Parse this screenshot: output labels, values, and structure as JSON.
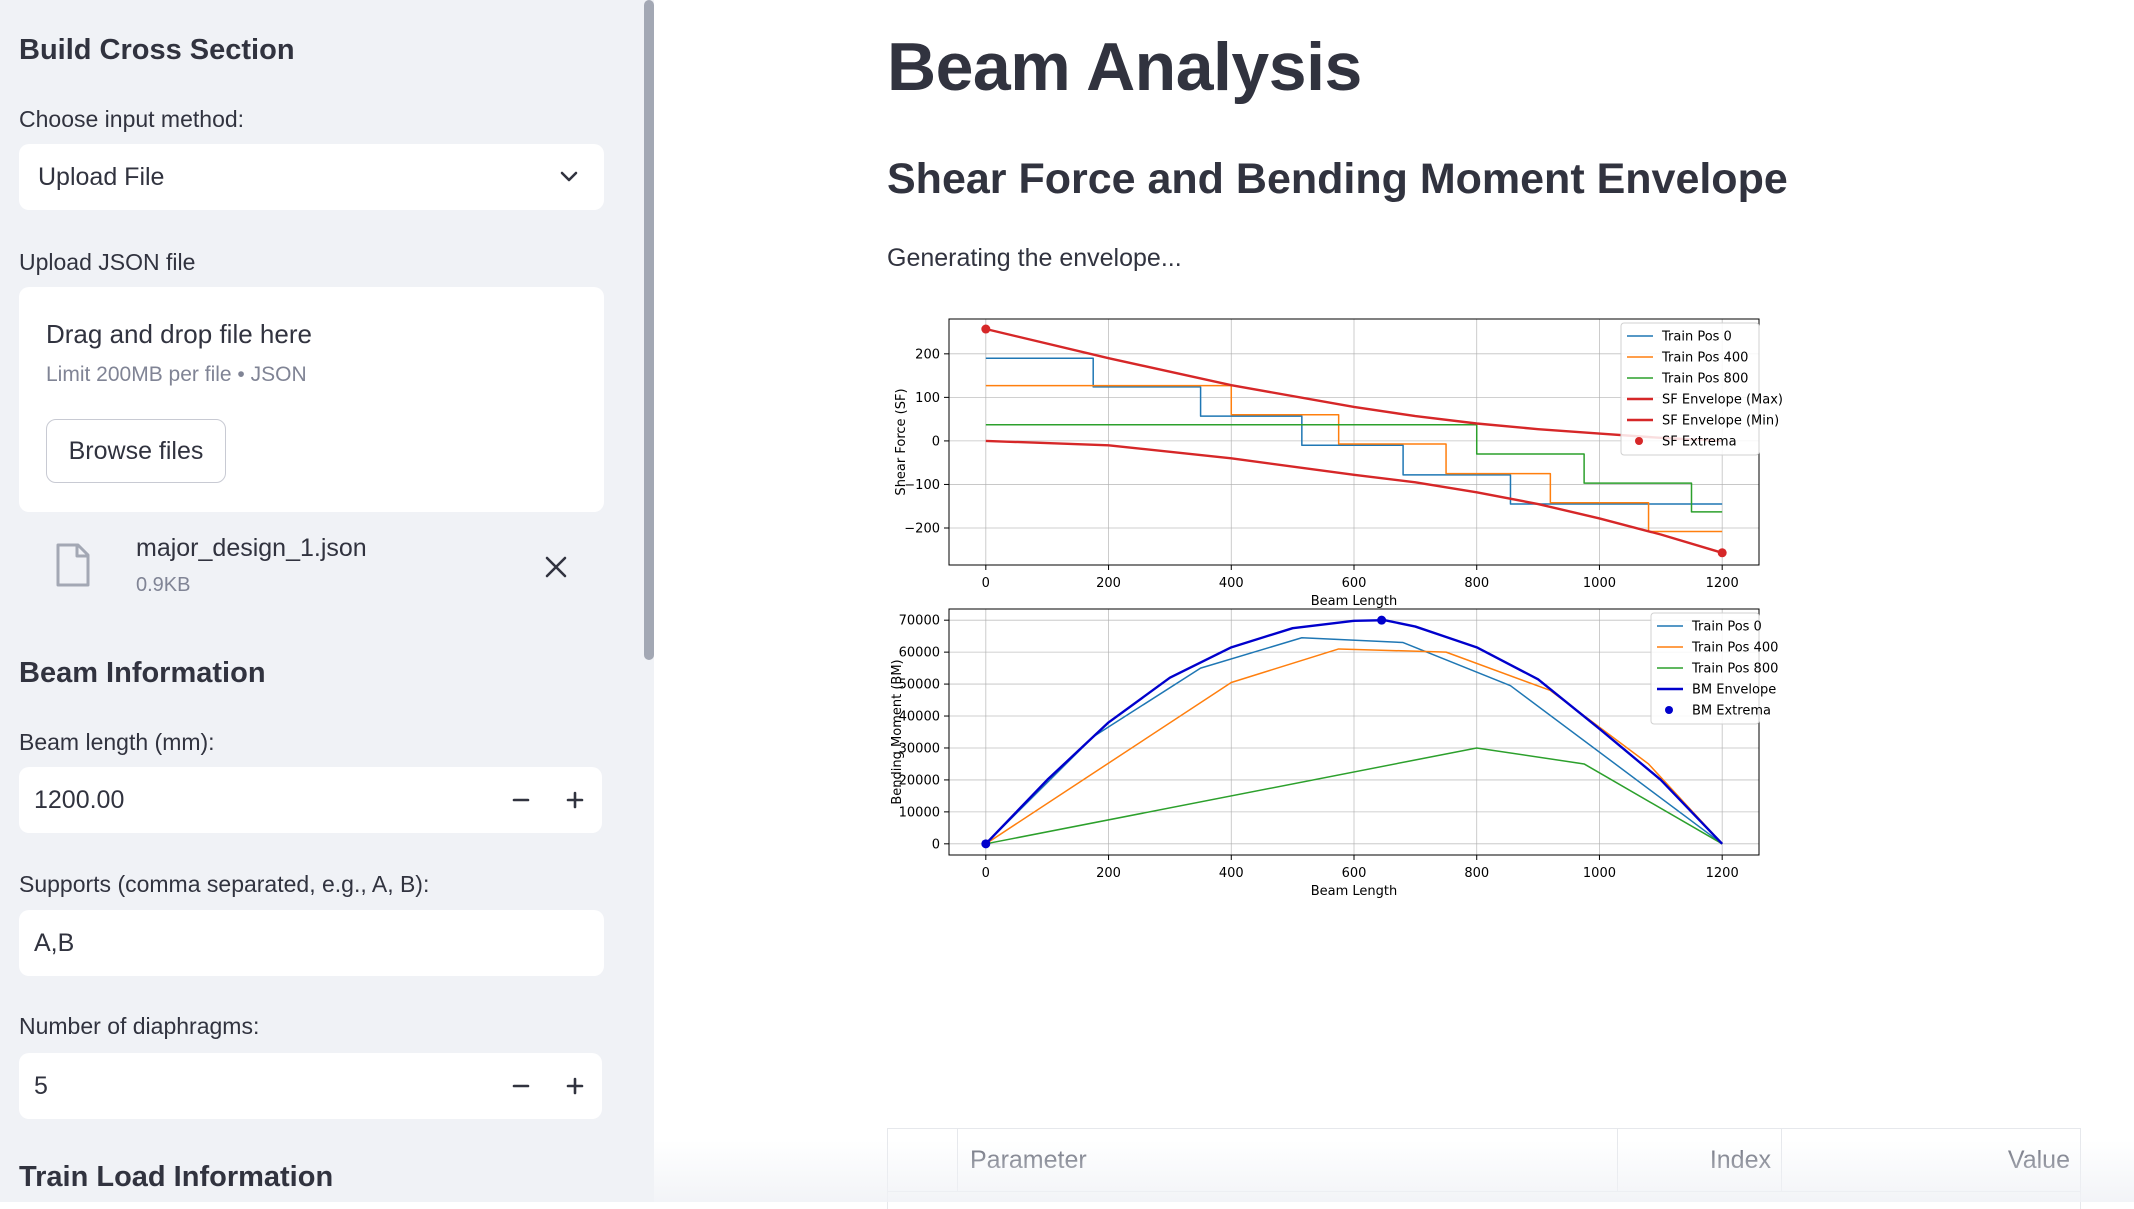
{
  "sidebar": {
    "build_heading": "Build Cross Section",
    "input_method_label": "Choose input method:",
    "input_method_value": "Upload File",
    "upload_label": "Upload JSON file",
    "dropzone_title": "Drag and drop file here",
    "dropzone_limit": "Limit 200MB per file • JSON",
    "browse_label": "Browse files",
    "file_name": "major_design_1.json",
    "file_size": "0.9KB",
    "beam_info_heading": "Beam Information",
    "beam_length_label": "Beam length (mm):",
    "beam_length_value": "1200.00",
    "supports_label": "Supports (comma separated, e.g., A, B):",
    "supports_value": "A,B",
    "diaphragms_label": "Number of diaphragms:",
    "diaphragms_value": "5",
    "train_load_heading": "Train Load Information"
  },
  "main": {
    "title": "Beam Analysis",
    "section_title": "Shear Force and Bending Moment Envelope",
    "status": "Generating the envelope..."
  },
  "table": {
    "headers": [
      "",
      "Parameter",
      "Index",
      "Value"
    ]
  },
  "colors": {
    "pos0": "#1f77b4",
    "pos400": "#ff7f0e",
    "pos800": "#2ca02c",
    "sf_env": "#d62728",
    "bm_env": "#0000cc"
  },
  "chart_data": [
    {
      "type": "line",
      "xlabel": "Beam Length",
      "ylabel": "Shear Force (SF)",
      "xlim": [
        -60,
        1260
      ],
      "ylim": [
        -285,
        280
      ],
      "xticks": [
        0,
        200,
        400,
        600,
        800,
        1000,
        1200
      ],
      "yticks": [
        200,
        100,
        0,
        -100,
        -200
      ],
      "ytick_labels": [
        "200",
        "100",
        "0",
        "−100",
        "−200"
      ],
      "grid": true,
      "legend": "top-right",
      "series": [
        {
          "name": "Train Pos 0",
          "style": "step",
          "x": [
            0,
            175,
            175,
            350,
            350,
            515,
            515,
            680,
            680,
            855,
            855,
            1200
          ],
          "y": [
            190,
            190,
            124,
            124,
            57,
            57,
            -10,
            -10,
            -78,
            -78,
            -145,
            -145
          ]
        },
        {
          "name": "Train Pos 400",
          "style": "step",
          "x": [
            0,
            400,
            400,
            575,
            575,
            750,
            750,
            920,
            920,
            1080,
            1080,
            1200
          ],
          "y": [
            127,
            127,
            60,
            60,
            -7,
            -7,
            -75,
            -75,
            -142,
            -142,
            -208,
            -208
          ]
        },
        {
          "name": "Train Pos 800",
          "style": "step",
          "x": [
            0,
            800,
            800,
            975,
            975,
            1150,
            1150,
            1200
          ],
          "y": [
            37,
            37,
            -30,
            -30,
            -97,
            -97,
            -163,
            -163
          ]
        },
        {
          "name": "SF Envelope (Max)",
          "style": "env",
          "x": [
            0,
            200,
            400,
            600,
            700,
            800,
            900,
            1000,
            1100,
            1200
          ],
          "y": [
            257,
            190,
            128,
            78,
            57,
            40,
            27,
            17,
            7,
            0
          ]
        },
        {
          "name": "SF Envelope (Min)",
          "style": "env",
          "x": [
            0,
            200,
            400,
            600,
            700,
            800,
            900,
            1000,
            1100,
            1200
          ],
          "y": [
            0,
            -10,
            -40,
            -78,
            -95,
            -118,
            -145,
            -178,
            -215,
            -257
          ]
        },
        {
          "name": "SF Extrema",
          "style": "points",
          "x": [
            0,
            1200
          ],
          "y": [
            257,
            -257
          ]
        }
      ]
    },
    {
      "type": "line",
      "xlabel": "Beam Length",
      "ylabel": "Bending Moment (BM)",
      "xlim": [
        -60,
        1260
      ],
      "ylim": [
        -3500,
        73500
      ],
      "xticks": [
        0,
        200,
        400,
        600,
        800,
        1000,
        1200
      ],
      "yticks": [
        70000,
        60000,
        50000,
        40000,
        30000,
        20000,
        10000,
        0
      ],
      "grid": true,
      "legend": "top-right",
      "series": [
        {
          "name": "Train Pos 0",
          "style": "line",
          "x": [
            0,
            175,
            350,
            515,
            680,
            855,
            1200
          ],
          "y": [
            0,
            33500,
            55000,
            64500,
            63000,
            49500,
            0
          ]
        },
        {
          "name": "Train Pos 400",
          "style": "line",
          "x": [
            0,
            400,
            575,
            750,
            920,
            1080,
            1200
          ],
          "y": [
            0,
            50500,
            61000,
            60000,
            48000,
            25000,
            0
          ]
        },
        {
          "name": "Train Pos 800",
          "style": "line",
          "x": [
            0,
            800,
            975,
            1200
          ],
          "y": [
            0,
            30000,
            25000,
            0
          ]
        },
        {
          "name": "BM Envelope",
          "style": "env",
          "x": [
            0,
            100,
            200,
            300,
            400,
            500,
            600,
            650,
            700,
            800,
            900,
            1000,
            1100,
            1200
          ],
          "y": [
            0,
            20000,
            38000,
            52000,
            61500,
            67500,
            69800,
            70000,
            68000,
            61500,
            51500,
            36000,
            20000,
            0
          ]
        },
        {
          "name": "BM Extrema",
          "style": "points",
          "x": [
            0,
            645
          ],
          "y": [
            0,
            70000
          ]
        }
      ]
    }
  ]
}
